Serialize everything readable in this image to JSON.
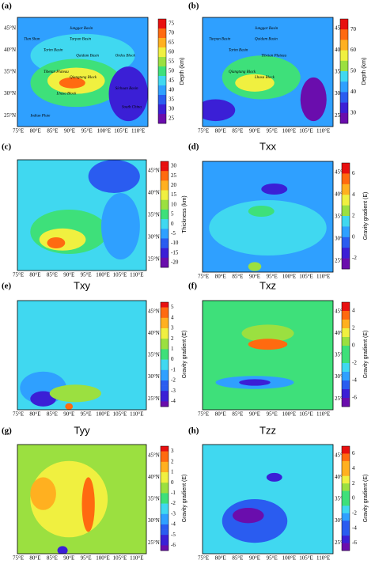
{
  "lon_ticks": [
    "75°E",
    "80°E",
    "85°E",
    "90°E",
    "95°E",
    "100°E",
    "105°E",
    "110°E"
  ],
  "lat_ticks": [
    "45°N",
    "40°N",
    "35°N",
    "30°N",
    "25°N"
  ],
  "panels": [
    {
      "label": "(a)",
      "colorbar_label": "Depth (km)",
      "colorbar_ticks": [
        "75",
        "70",
        "65",
        "60",
        "55",
        "50",
        "45",
        "40",
        "35",
        "30",
        "25"
      ],
      "places": [
        "Junggar Basin",
        "Tian Shan",
        "Tarim Basin",
        "Turpan Basin",
        "Qaidam Basin",
        "Tibetan Plateau",
        "Qiangtang Block",
        "Lhasa Block",
        "Ordos Block",
        "Sichuan Basin",
        "South China",
        "Indian Plate"
      ]
    },
    {
      "label": "(b)",
      "colorbar_label": "Depth (km)",
      "colorbar_ticks": [
        "70",
        "60",
        "50",
        "40",
        "30"
      ],
      "places": [
        "Junggar Basin",
        "Turpan Basin",
        "Tarim Basin",
        "Qaidam Basin",
        "Tibetan Plateau",
        "Qiangtang Block",
        "Lhasa Block"
      ]
    },
    {
      "label": "(c)",
      "colorbar_label": "Thickness (km)",
      "colorbar_ticks": [
        "30",
        "25",
        "20",
        "15",
        "10",
        "5",
        "0",
        "-5",
        "-10",
        "-15",
        "-20"
      ]
    },
    {
      "label": "(d)",
      "title": "Txx",
      "colorbar_label": "Gravity gradient (E)",
      "colorbar_ticks": [
        "6",
        "4",
        "2",
        "0",
        "-2"
      ]
    },
    {
      "label": "(e)",
      "title": "Txy",
      "colorbar_label": "Gravity gradient (E)",
      "colorbar_ticks": [
        "5",
        "4",
        "3",
        "2",
        "1",
        "0",
        "-1",
        "-2",
        "-3",
        "-4"
      ]
    },
    {
      "label": "(f)",
      "title": "Txz",
      "colorbar_label": "Gravity gradient (E)",
      "colorbar_ticks": [
        "4",
        "2",
        "0",
        "-2",
        "-4",
        "-6"
      ]
    },
    {
      "label": "(g)",
      "title": "Tyy",
      "colorbar_label": "Gravity gradient (E)",
      "colorbar_ticks": [
        "3",
        "2",
        "1",
        "0",
        "-1",
        "-2",
        "-3",
        "-4",
        "-5",
        "-6"
      ]
    },
    {
      "label": "(h)",
      "title": "Tzz",
      "colorbar_label": "Gravity gradient (E)",
      "colorbar_ticks": [
        "6",
        "4",
        "2",
        "0",
        "-2",
        "-4",
        "-6"
      ]
    }
  ]
}
